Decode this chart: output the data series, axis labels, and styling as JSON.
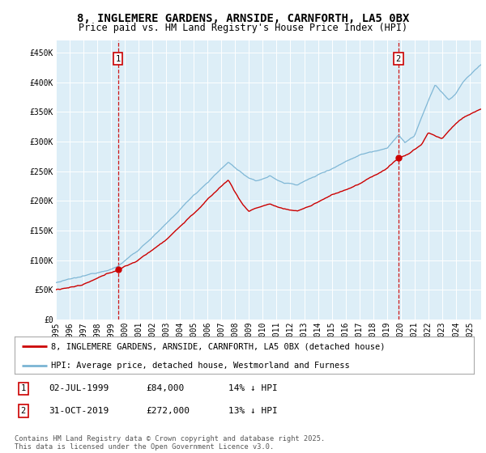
{
  "title": "8, INGLEMERE GARDENS, ARNSIDE, CARNFORTH, LA5 0BX",
  "subtitle": "Price paid vs. HM Land Registry's House Price Index (HPI)",
  "xlim_start": 1995.0,
  "xlim_end": 2025.83,
  "ylim_min": 0,
  "ylim_max": 470000,
  "yticks": [
    0,
    50000,
    100000,
    150000,
    200000,
    250000,
    300000,
    350000,
    400000,
    450000
  ],
  "ytick_labels": [
    "£0",
    "£50K",
    "£100K",
    "£150K",
    "£200K",
    "£250K",
    "£300K",
    "£350K",
    "£400K",
    "£450K"
  ],
  "xticks": [
    1995,
    1996,
    1997,
    1998,
    1999,
    2000,
    2001,
    2002,
    2003,
    2004,
    2005,
    2006,
    2007,
    2008,
    2009,
    2010,
    2011,
    2012,
    2013,
    2014,
    2015,
    2016,
    2017,
    2018,
    2019,
    2020,
    2021,
    2022,
    2023,
    2024,
    2025
  ],
  "sale1_x": 1999.5,
  "sale1_y": 84000,
  "sale2_x": 2019.83,
  "sale2_y": 272000,
  "legend_line1": "8, INGLEMERE GARDENS, ARNSIDE, CARNFORTH, LA5 0BX (detached house)",
  "legend_line2": "HPI: Average price, detached house, Westmorland and Furness",
  "footer": "Contains HM Land Registry data © Crown copyright and database right 2025.\nThis data is licensed under the Open Government Licence v3.0.",
  "hpi_color": "#7ab4d4",
  "price_color": "#cc0000",
  "vline_color": "#cc0000",
  "bg_color": "#ddeef7",
  "title_fontsize": 10,
  "subtitle_fontsize": 8.5,
  "tick_fontsize": 7,
  "legend_fontsize": 7.5,
  "annotation_fontsize": 8
}
